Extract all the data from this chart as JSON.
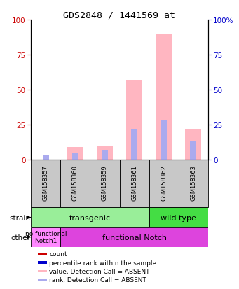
{
  "title": "GDS2848 / 1441569_at",
  "samples": [
    "GSM158357",
    "GSM158360",
    "GSM158359",
    "GSM158361",
    "GSM158362",
    "GSM158363"
  ],
  "value_absent": [
    0,
    9,
    10,
    57,
    90,
    22
  ],
  "rank_absent": [
    3,
    5,
    7,
    22,
    28,
    13
  ],
  "ylim": [
    0,
    100
  ],
  "color_value_absent": "#FFB6C1",
  "color_rank_absent": "#AAAAEE",
  "color_count": "#CC0000",
  "color_rank": "#0000CC",
  "strain_transgenic_color": "#99EE99",
  "strain_wildtype_color": "#44DD44",
  "other_nofunc_color": "#FF88FF",
  "other_func_color": "#DD44DD",
  "dotted_grid": [
    25,
    50,
    75
  ],
  "left_tick_color": "#CC0000",
  "right_tick_color": "#0000CC",
  "xticklabel_bg": "#C8C8C8"
}
